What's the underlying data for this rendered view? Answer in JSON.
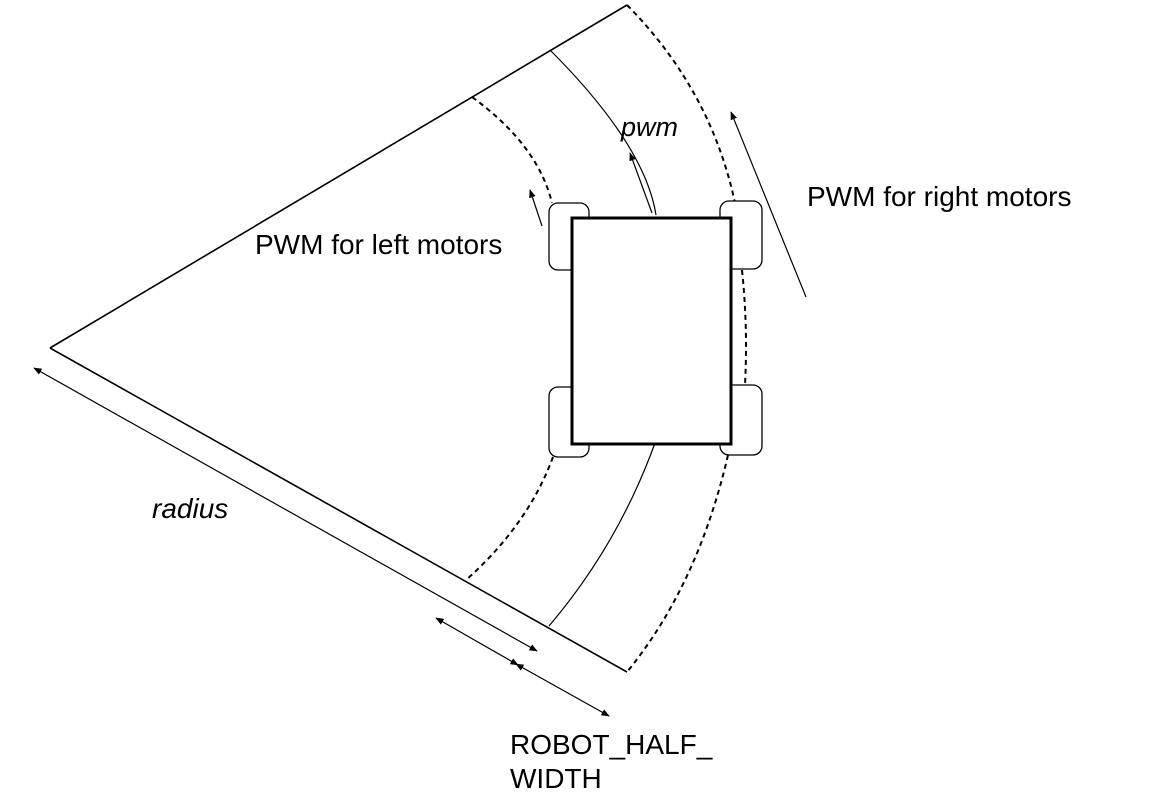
{
  "labels": {
    "pwm": "pwm",
    "pwm_right": "PWM for right motors",
    "pwm_left": "PWM for left motors",
    "radius": "radius",
    "robot_half_width": "ROBOT_HALF_\nWIDTH"
  },
  "colors": {
    "stroke": "#000000",
    "background": "#ffffff"
  }
}
